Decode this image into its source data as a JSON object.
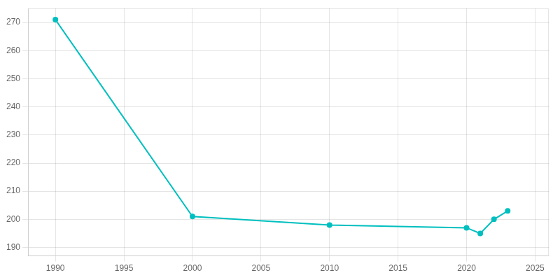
{
  "chart_data": {
    "type": "line",
    "x": [
      1990,
      2000,
      2010,
      2020,
      2021,
      2022,
      2023
    ],
    "values": [
      271,
      201,
      198,
      197,
      195,
      200,
      203
    ],
    "color": "#00BFBF",
    "marker": "circle",
    "xlim": [
      1988,
      2026
    ],
    "ylim": [
      187,
      275
    ],
    "xticks": [
      1990,
      1995,
      2000,
      2005,
      2010,
      2015,
      2020,
      2025
    ],
    "yticks": [
      190,
      200,
      210,
      220,
      230,
      240,
      250,
      260,
      270
    ],
    "grid": true
  }
}
